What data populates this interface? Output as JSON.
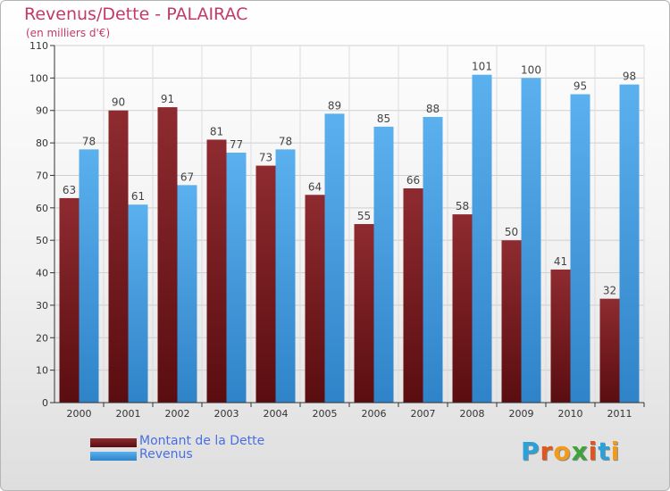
{
  "header": {
    "title": "Revenus/Dette - PALAIRAC",
    "subtitle": "(en milliers d'€)"
  },
  "chart_data": {
    "type": "bar",
    "title": "Revenus/Dette - PALAIRAC",
    "subtitle": "(en milliers d'€)",
    "categories": [
      "2000",
      "2001",
      "2002",
      "2003",
      "2004",
      "2005",
      "2006",
      "2007",
      "2008",
      "2009",
      "2010",
      "2011"
    ],
    "series": [
      {
        "name": "Montant de la Dette",
        "color": "#7a1f24",
        "values": [
          63,
          90,
          91,
          81,
          73,
          64,
          55,
          66,
          58,
          50,
          41,
          32
        ]
      },
      {
        "name": "Revenus",
        "color": "#4aa3e3",
        "values": [
          78,
          61,
          67,
          77,
          78,
          89,
          85,
          88,
          101,
          100,
          95,
          98
        ]
      }
    ],
    "ylim": [
      0,
      110
    ],
    "yticks": [
      0,
      10,
      20,
      30,
      40,
      50,
      60,
      70,
      80,
      90,
      100,
      110
    ],
    "grid": true,
    "legend_position": "bottom-left",
    "data_labels": true
  },
  "legend": {
    "items": [
      {
        "label": "Montant de la Dette",
        "color": "#7a1f24"
      },
      {
        "label": "Revenus",
        "color": "#4aa3e3"
      }
    ]
  },
  "logo": {
    "text": "Proxiti"
  }
}
